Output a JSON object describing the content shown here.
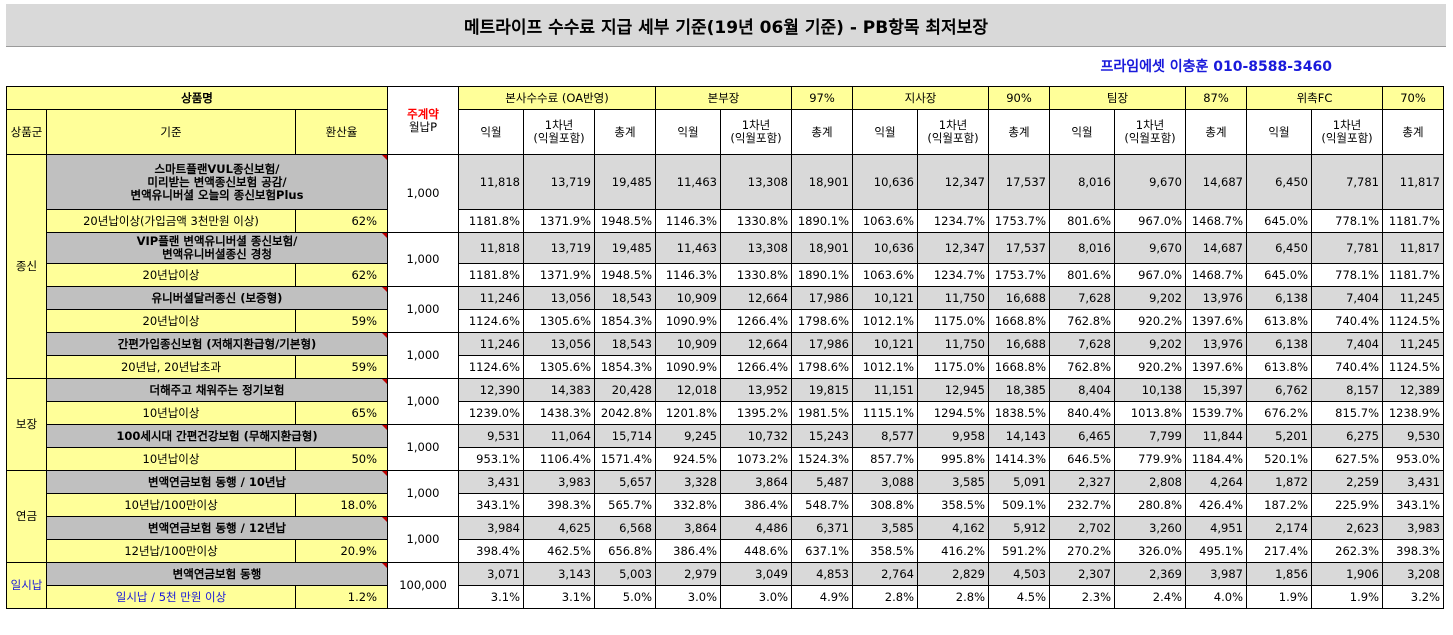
{
  "title": "메트라이프 수수료 지급 세부 기준(19년 06월 기준) - PB항목 최저보장",
  "contact": "프라임에셋 이충훈 010-8588-3460",
  "header": {
    "product_name": "상품명",
    "premium_line1": "주계약",
    "premium_line2": "월납P",
    "group": "상품군",
    "criteria": "기준",
    "conv_rate": "환산율",
    "tiers": [
      {
        "name": "본사수수료 (OA반영)",
        "pct": ""
      },
      {
        "name": "본부장",
        "pct": "97%"
      },
      {
        "name": "지사장",
        "pct": "90%"
      },
      {
        "name": "팀장",
        "pct": "87%"
      },
      {
        "name": "위촉FC",
        "pct": "70%"
      }
    ],
    "sub_labels": {
      "wol": "익월",
      "first_l1": "1차년",
      "first_l2": "(익월포함)",
      "total": "총계"
    }
  },
  "groups": [
    {
      "name": "종신",
      "products": [
        {
          "name_lines": [
            "스마트플랜VUL종신보험/",
            "미리받는 변액종신보험 공감/",
            "변액유니버셜 오늘의 종신보험Plus"
          ],
          "criteria": "20년납이상(가입금액 3천만원 이상)",
          "rate": "62%",
          "premium": "1,000",
          "values": [
            "11,818",
            "13,719",
            "19,485",
            "11,463",
            "13,308",
            "18,901",
            "10,636",
            "12,347",
            "17,537",
            "8,016",
            "9,670",
            "14,687",
            "6,450",
            "7,781",
            "11,817"
          ],
          "pcts": [
            "1181.8%",
            "1371.9%",
            "1948.5%",
            "1146.3%",
            "1330.8%",
            "1890.1%",
            "1063.6%",
            "1234.7%",
            "1753.7%",
            "801.6%",
            "967.0%",
            "1468.7%",
            "645.0%",
            "778.1%",
            "1181.7%"
          ]
        },
        {
          "name_lines": [
            "VIP플랜 변액유니버셜 종신보험/",
            "변액유니버셜종신 경청"
          ],
          "criteria": "20년납이상",
          "rate": "62%",
          "premium": "1,000",
          "values": [
            "11,818",
            "13,719",
            "19,485",
            "11,463",
            "13,308",
            "18,901",
            "10,636",
            "12,347",
            "17,537",
            "8,016",
            "9,670",
            "14,687",
            "6,450",
            "7,781",
            "11,817"
          ],
          "pcts": [
            "1181.8%",
            "1371.9%",
            "1948.5%",
            "1146.3%",
            "1330.8%",
            "1890.1%",
            "1063.6%",
            "1234.7%",
            "1753.7%",
            "801.6%",
            "967.0%",
            "1468.7%",
            "645.0%",
            "778.1%",
            "1181.7%"
          ]
        },
        {
          "name_lines": [
            "유니버셜달러종신 (보증형)"
          ],
          "criteria": "20년납이상",
          "rate": "59%",
          "premium": "1,000",
          "values": [
            "11,246",
            "13,056",
            "18,543",
            "10,909",
            "12,664",
            "17,986",
            "10,121",
            "11,750",
            "16,688",
            "7,628",
            "9,202",
            "13,976",
            "6,138",
            "7,404",
            "11,245"
          ],
          "pcts": [
            "1124.6%",
            "1305.6%",
            "1854.3%",
            "1090.9%",
            "1266.4%",
            "1798.6%",
            "1012.1%",
            "1175.0%",
            "1668.8%",
            "762.8%",
            "920.2%",
            "1397.6%",
            "613.8%",
            "740.4%",
            "1124.5%"
          ]
        },
        {
          "name_lines": [
            "간편가입종신보험 (저해지환급형/기본형)"
          ],
          "criteria": "20년납, 20년납초과",
          "rate": "59%",
          "premium": "1,000",
          "values": [
            "11,246",
            "13,056",
            "18,543",
            "10,909",
            "12,664",
            "17,986",
            "10,121",
            "11,750",
            "16,688",
            "7,628",
            "9,202",
            "13,976",
            "6,138",
            "7,404",
            "11,245"
          ],
          "pcts": [
            "1124.6%",
            "1305.6%",
            "1854.3%",
            "1090.9%",
            "1266.4%",
            "1798.6%",
            "1012.1%",
            "1175.0%",
            "1668.8%",
            "762.8%",
            "920.2%",
            "1397.6%",
            "613.8%",
            "740.4%",
            "1124.5%"
          ]
        }
      ]
    },
    {
      "name": "보장",
      "products": [
        {
          "name_lines": [
            "더해주고 채워주는 정기보험"
          ],
          "criteria": "10년납이상",
          "rate": "65%",
          "premium": "1,000",
          "values": [
            "12,390",
            "14,383",
            "20,428",
            "12,018",
            "13,952",
            "19,815",
            "11,151",
            "12,945",
            "18,385",
            "8,404",
            "10,138",
            "15,397",
            "6,762",
            "8,157",
            "12,389"
          ],
          "pcts": [
            "1239.0%",
            "1438.3%",
            "2042.8%",
            "1201.8%",
            "1395.2%",
            "1981.5%",
            "1115.1%",
            "1294.5%",
            "1838.5%",
            "840.4%",
            "1013.8%",
            "1539.7%",
            "676.2%",
            "815.7%",
            "1238.9%"
          ]
        },
        {
          "name_lines": [
            "100세시대 간편건강보험 (무해지환급형)"
          ],
          "criteria": "10년납이상",
          "rate": "50%",
          "premium": "1,000",
          "values": [
            "9,531",
            "11,064",
            "15,714",
            "9,245",
            "10,732",
            "15,243",
            "8,577",
            "9,958",
            "14,143",
            "6,465",
            "7,799",
            "11,844",
            "5,201",
            "6,275",
            "9,530"
          ],
          "pcts": [
            "953.1%",
            "1106.4%",
            "1571.4%",
            "924.5%",
            "1073.2%",
            "1524.3%",
            "857.7%",
            "995.8%",
            "1414.3%",
            "646.5%",
            "779.9%",
            "1184.4%",
            "520.1%",
            "627.5%",
            "953.0%"
          ]
        }
      ]
    },
    {
      "name": "연금",
      "products": [
        {
          "name_lines": [
            "변액연금보험 동행 / 10년납"
          ],
          "criteria": "10년납/100만이상",
          "rate": "18.0%",
          "premium": "1,000",
          "values": [
            "3,431",
            "3,983",
            "5,657",
            "3,328",
            "3,864",
            "5,487",
            "3,088",
            "3,585",
            "5,091",
            "2,327",
            "2,808",
            "4,264",
            "1,872",
            "2,259",
            "3,431"
          ],
          "pcts": [
            "343.1%",
            "398.3%",
            "565.7%",
            "332.8%",
            "386.4%",
            "548.7%",
            "308.8%",
            "358.5%",
            "509.1%",
            "232.7%",
            "280.8%",
            "426.4%",
            "187.2%",
            "225.9%",
            "343.1%"
          ]
        },
        {
          "name_lines": [
            "변액연금보험 동행 / 12년납"
          ],
          "criteria": "12년납/100만이상",
          "rate": "20.9%",
          "premium": "1,000",
          "values": [
            "3,984",
            "4,625",
            "6,568",
            "3,864",
            "4,486",
            "6,371",
            "3,585",
            "4,162",
            "5,912",
            "2,702",
            "3,260",
            "4,951",
            "2,174",
            "2,623",
            "3,983"
          ],
          "pcts": [
            "398.4%",
            "462.5%",
            "656.8%",
            "386.4%",
            "448.6%",
            "637.1%",
            "358.5%",
            "416.2%",
            "591.2%",
            "270.2%",
            "326.0%",
            "495.1%",
            "217.4%",
            "262.3%",
            "398.3%"
          ]
        }
      ]
    },
    {
      "name": "일시납",
      "products": [
        {
          "name_lines": [
            "변액연금보험 동행"
          ],
          "criteria": "일시납 / 5천 만원 이상",
          "rate": "1.2%",
          "premium": "100,000",
          "values": [
            "3,071",
            "3,143",
            "5,003",
            "2,979",
            "3,049",
            "4,853",
            "2,764",
            "2,829",
            "4,503",
            "2,307",
            "2,369",
            "3,987",
            "1,856",
            "1,906",
            "3,208"
          ],
          "pcts": [
            "3.1%",
            "3.1%",
            "5.0%",
            "3.0%",
            "3.0%",
            "4.9%",
            "2.8%",
            "2.8%",
            "4.5%",
            "2.3%",
            "2.4%",
            "4.0%",
            "1.9%",
            "1.9%",
            "3.2%"
          ]
        }
      ]
    }
  ]
}
